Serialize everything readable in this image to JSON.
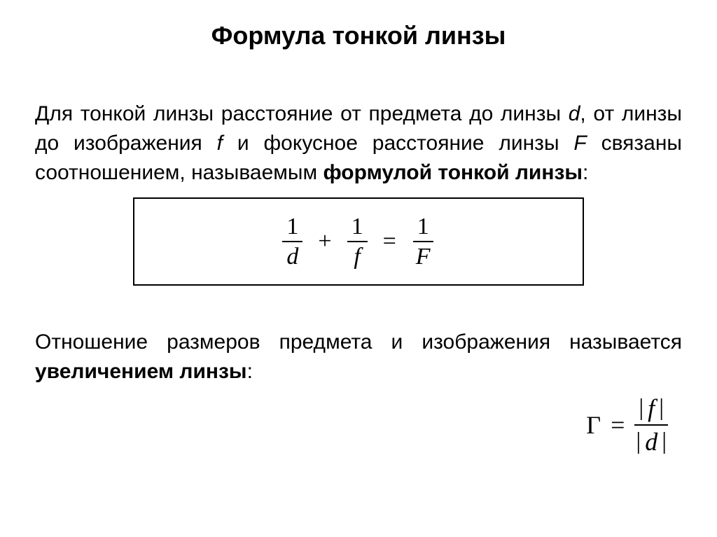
{
  "title": "Формула тонкой линзы",
  "para1_a": "Для тонкой линзы расстояние от предмета до линзы ",
  "var_d": "d",
  "para1_b": ", от линзы до изображения ",
  "var_f": "f",
  "para1_c": " и фокусное расстояние линзы ",
  "var_F": "F",
  "para1_d": " связаны соотношением, называемым ",
  "bold1": "формулой тонкой линзы",
  "para1_e": ":",
  "formula": {
    "frac1_num": "1",
    "frac1_den": "d",
    "plus": "+",
    "frac2_num": "1",
    "frac2_den": "f",
    "eq": "=",
    "frac3_num": "1",
    "frac3_den": "F",
    "font_family": "Times New Roman",
    "border_color": "#000000",
    "font_size_pt": 26
  },
  "para2_a": "Отношение размеров предмета и изображения называется ",
  "bold2": "увеличением линзы",
  "para2_b": ":",
  "magnification": {
    "gamma": "Г",
    "eq": "=",
    "abs_f": "f",
    "abs_d": "d",
    "bar": "|",
    "font_family": "Times New Roman",
    "font_size_pt": 27
  },
  "colors": {
    "text": "#000000",
    "background": "#ffffff"
  }
}
